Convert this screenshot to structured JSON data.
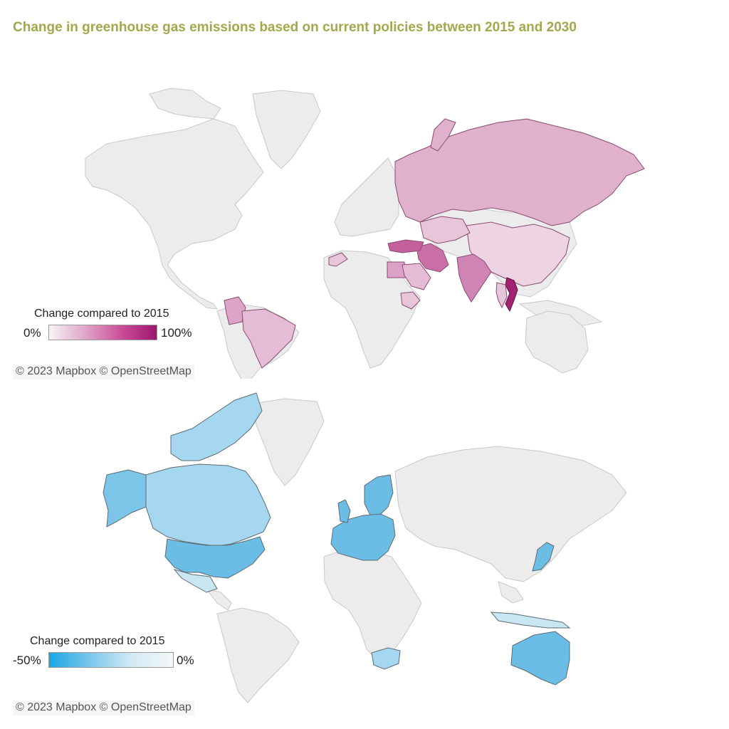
{
  "title": "Change in greenhouse gas emissions based on current policies between 2015 and 2030",
  "maps": [
    {
      "legend": {
        "title": "Change compared to 2015",
        "min_label": "0%",
        "max_label": "100%",
        "colors": [
          "#f7f4f6",
          "#e0a6c9",
          "#cc4e99",
          "#9e1670"
        ]
      },
      "attribution": "© 2023 Mapbox © OpenStreetMap",
      "highlighted_countries": [
        "Russia",
        "China",
        "India",
        "Iran",
        "Turkey",
        "Vietnam",
        "Brazil",
        "Colombia",
        "Egypt",
        "Saudi Arabia",
        "Morocco",
        "Ethiopia",
        "Thailand",
        "Kazakhstan"
      ]
    },
    {
      "legend": {
        "title": "Change compared to 2015",
        "min_label": "-50%",
        "max_label": "0%",
        "colors": [
          "#1aa6e3",
          "#7cc7ec",
          "#d2eaf4",
          "#f4f6f7"
        ]
      },
      "attribution": "© 2023 Mapbox © OpenStreetMap",
      "highlighted_countries": [
        "Canada",
        "United States",
        "Mexico",
        "European Union",
        "Norway",
        "Japan",
        "Australia",
        "South Africa",
        "Indonesia"
      ]
    }
  ],
  "colors": {
    "land": "#ececec",
    "border": "#c8c8c8",
    "title": "#a2a94c"
  }
}
